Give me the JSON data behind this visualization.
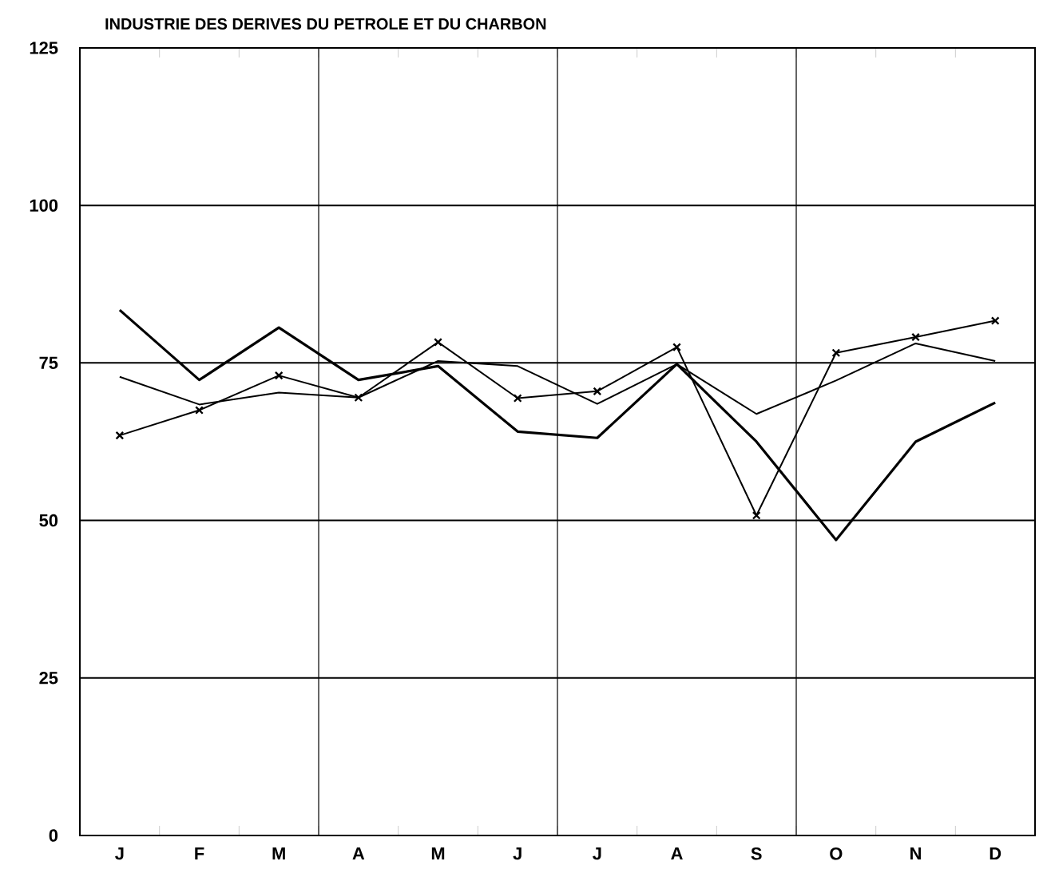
{
  "chart_data": {
    "type": "line",
    "title": "INDUSTRIE DES DERIVES DU PETROLE ET DU CHARBON",
    "categories": [
      "J",
      "F",
      "M",
      "A",
      "M",
      "J",
      "J",
      "A",
      "S",
      "O",
      "N",
      "D"
    ],
    "series": [
      {
        "color": "#000000",
        "marker": "none",
        "values": [
          83.4,
          72.3,
          80.6,
          72.3,
          74.5,
          64.1,
          63.1,
          74.8,
          62.5,
          46.9,
          62.5,
          68.7
        ]
      },
      {
        "color": "#000000",
        "marker": "none",
        "values": [
          72.8,
          68.4,
          70.3,
          69.5,
          75.3,
          74.5,
          68.5,
          74.8,
          66.9,
          72.2,
          78.1,
          75.3
        ]
      },
      {
        "color": "#000000",
        "marker": "cross",
        "values": [
          63.5,
          67.5,
          73.0,
          69.5,
          78.3,
          69.4,
          70.5,
          77.5,
          50.8,
          76.6,
          79.1,
          81.7
        ]
      }
    ],
    "ylim": [
      0,
      125
    ],
    "yticks": [
      0,
      25,
      50,
      75,
      100,
      125
    ],
    "grid": true,
    "line_style": "solid"
  }
}
